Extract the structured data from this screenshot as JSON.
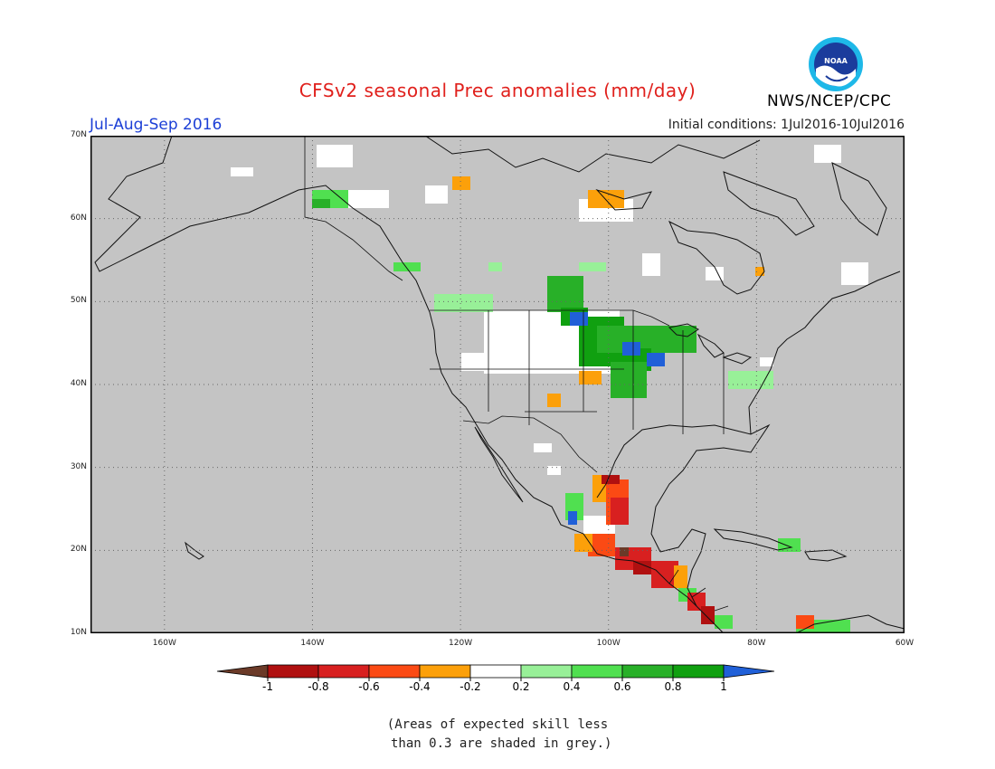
{
  "title": "CFSv2 seasonal Prec anomalies (mm/day)",
  "period": "Jul-Aug-Sep 2016",
  "initial_conditions": "Initial conditions: 1Jul2016-10Jul2016",
  "agency": "NWS/NCEP/CPC",
  "logo": {
    "icon": "noaa-logo-icon",
    "text": "NOAA"
  },
  "map": {
    "lon_range": [
      -170,
      -60
    ],
    "lat_range": [
      10,
      70
    ],
    "lat_ticks": [
      "70N",
      "60N",
      "50N",
      "40N",
      "30N",
      "20N",
      "10N"
    ],
    "lon_ticks": [
      "160W",
      "140W",
      "120W",
      "100W",
      "80W",
      "60W"
    ],
    "grid": "dotted",
    "background_color": "#c4c4c4"
  },
  "colorbar": {
    "labels": [
      "-1",
      "-0.8",
      "-0.6",
      "-0.4",
      "-0.2",
      "0.2",
      "0.4",
      "0.6",
      "0.8",
      "1"
    ],
    "colors": [
      "#6b3a28",
      "#b01010",
      "#d82020",
      "#fb4a14",
      "#fca00a",
      "#ffffff",
      "#98f098",
      "#50e050",
      "#28b028",
      "#10a010",
      "#2060d8"
    ]
  },
  "footnote": "(Areas of expected skill less\n than 0.3 are shaded in grey.)"
}
